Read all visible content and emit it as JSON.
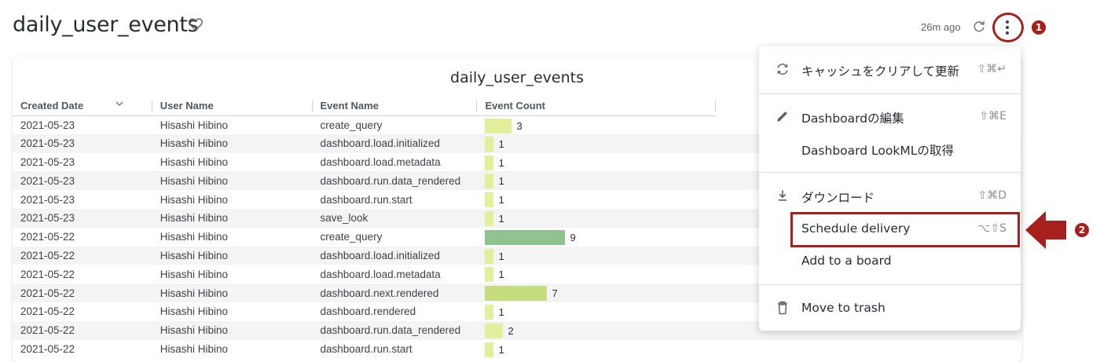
{
  "header": {
    "title": "daily_user_events",
    "updated": "26m ago",
    "badge1": "1",
    "badge2": "2"
  },
  "tile": {
    "title": "daily_user_events",
    "columns": [
      "Created Date",
      "User Name",
      "Event Name",
      "Event Count"
    ],
    "rows": [
      {
        "date": "2021-05-23",
        "user": "Hisashi Hibino",
        "event": "create_query",
        "count": 3
      },
      {
        "date": "2021-05-23",
        "user": "Hisashi Hibino",
        "event": "dashboard.load.initialized",
        "count": 1
      },
      {
        "date": "2021-05-23",
        "user": "Hisashi Hibino",
        "event": "dashboard.load.metadata",
        "count": 1
      },
      {
        "date": "2021-05-23",
        "user": "Hisashi Hibino",
        "event": "dashboard.run.data_rendered",
        "count": 1
      },
      {
        "date": "2021-05-23",
        "user": "Hisashi Hibino",
        "event": "dashboard.run.start",
        "count": 1
      },
      {
        "date": "2021-05-23",
        "user": "Hisashi Hibino",
        "event": "save_look",
        "count": 1
      },
      {
        "date": "2021-05-22",
        "user": "Hisashi Hibino",
        "event": "create_query",
        "count": 9
      },
      {
        "date": "2021-05-22",
        "user": "Hisashi Hibino",
        "event": "dashboard.load.initialized",
        "count": 1
      },
      {
        "date": "2021-05-22",
        "user": "Hisashi Hibino",
        "event": "dashboard.load.metadata",
        "count": 1
      },
      {
        "date": "2021-05-22",
        "user": "Hisashi Hibino",
        "event": "dashboard.next.rendered",
        "count": 7
      },
      {
        "date": "2021-05-22",
        "user": "Hisashi Hibino",
        "event": "dashboard.rendered",
        "count": 1
      },
      {
        "date": "2021-05-22",
        "user": "Hisashi Hibino",
        "event": "dashboard.run.data_rendered",
        "count": 2
      },
      {
        "date": "2021-05-22",
        "user": "Hisashi Hibino",
        "event": "dashboard.run.start",
        "count": 1
      }
    ],
    "bar_max": 9,
    "colors": {
      "low": "#e4ef9c",
      "mid": "#c5dd7e",
      "high": "#8fc28f"
    }
  },
  "menu": {
    "items": [
      {
        "label": "キャッシュをクリアして更新",
        "shortcut": "⇧⌘↵",
        "icon": "refresh-cache-icon"
      },
      {
        "label": "Dashboardの編集",
        "shortcut": "⇧⌘E",
        "icon": "pencil-icon"
      },
      {
        "label": "Dashboard LookMLの取得",
        "shortcut": "",
        "icon": ""
      },
      {
        "label": "ダウンロード",
        "shortcut": "⇧⌘D",
        "icon": "download-icon"
      },
      {
        "label": "Schedule delivery",
        "shortcut": "⌥⇧S",
        "icon": ""
      },
      {
        "label": "Add to a board",
        "shortcut": "",
        "icon": ""
      },
      {
        "label": "Move to trash",
        "shortcut": "",
        "icon": "trash-icon"
      }
    ]
  },
  "accent": "#a6201d"
}
